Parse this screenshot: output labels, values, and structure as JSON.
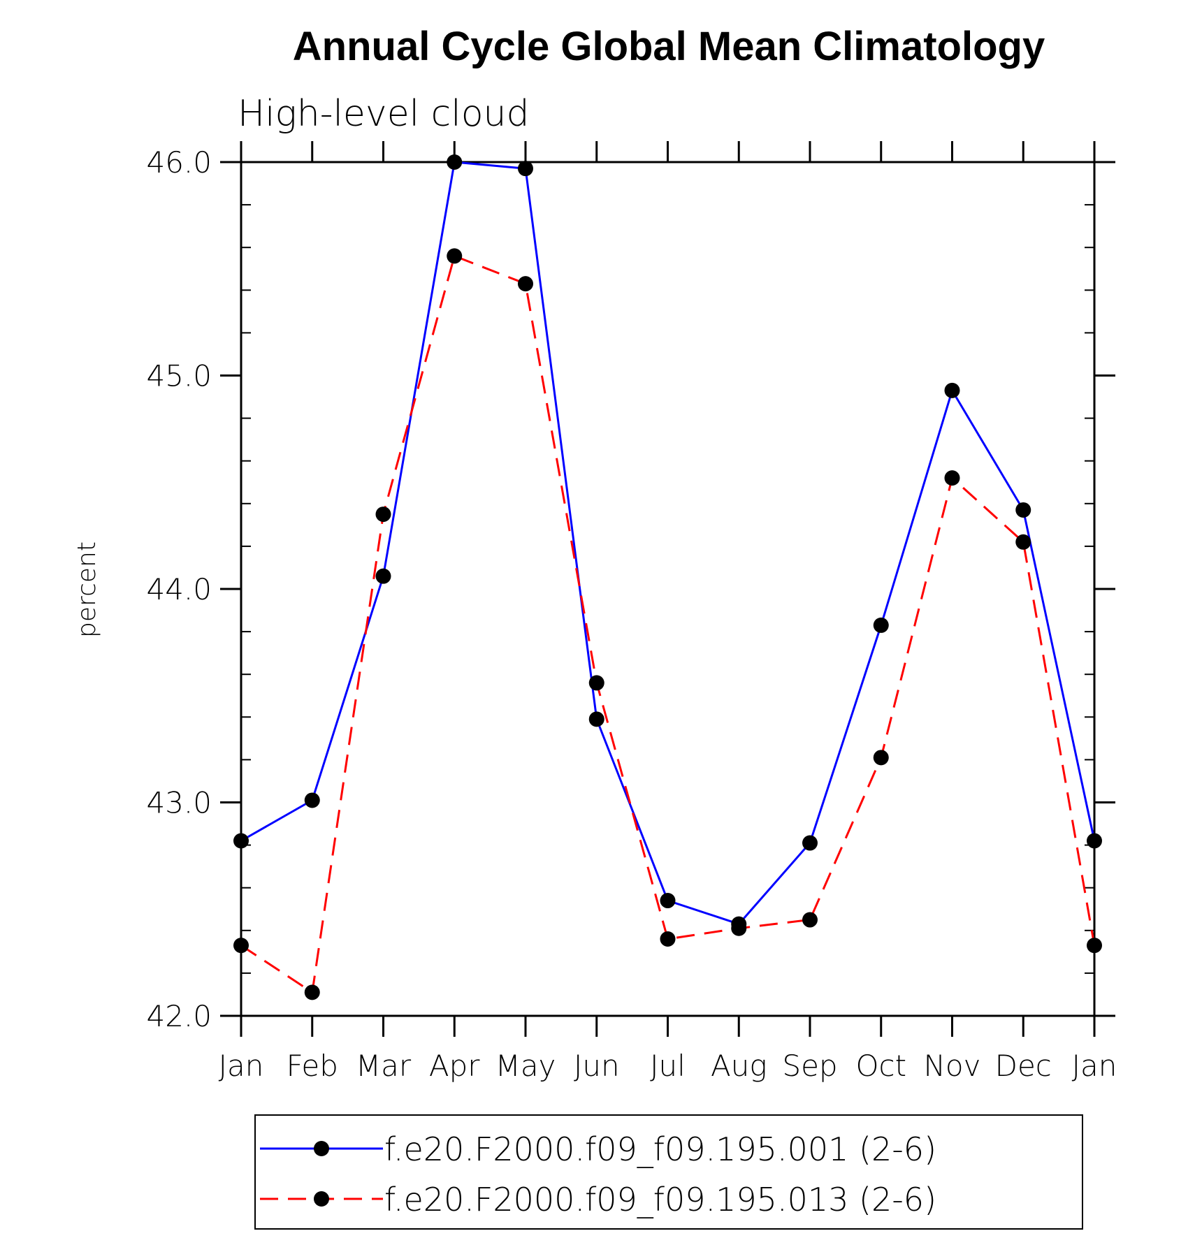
{
  "chart_data": {
    "type": "line",
    "title": "Annual Cycle Global Mean Climatology",
    "subtitle": "High-level cloud",
    "xlabel": "",
    "ylabel": "percent",
    "categories": [
      "Jan",
      "Feb",
      "Mar",
      "Apr",
      "May",
      "Jun",
      "Jul",
      "Aug",
      "Sep",
      "Oct",
      "Nov",
      "Dec",
      "Jan"
    ],
    "ylim": [
      42.0,
      46.0
    ],
    "yticks": [
      42.0,
      43.0,
      44.0,
      45.0,
      46.0
    ],
    "ytick_labels": [
      "42.0",
      "43.0",
      "44.0",
      "45.0",
      "46.0"
    ],
    "grid": false,
    "legend_position": "bottom",
    "series": [
      {
        "name": "f.e20.F2000.f09_f09.195.001 (2-6)",
        "color": "#0000ff",
        "line_style": "solid",
        "marker": "filled-circle",
        "marker_color": "#000000",
        "values": [
          42.82,
          43.01,
          44.06,
          46.0,
          45.97,
          43.39,
          42.54,
          42.43,
          42.81,
          43.83,
          44.93,
          44.37,
          42.82
        ]
      },
      {
        "name": "f.e20.F2000.f09_f09.195.013 (2-6)",
        "color": "#ff0000",
        "line_style": "dashed",
        "marker": "filled-circle",
        "marker_color": "#000000",
        "values": [
          42.33,
          42.11,
          44.35,
          45.56,
          45.43,
          43.56,
          42.36,
          42.41,
          42.45,
          43.21,
          44.52,
          44.22,
          42.33
        ]
      }
    ]
  }
}
